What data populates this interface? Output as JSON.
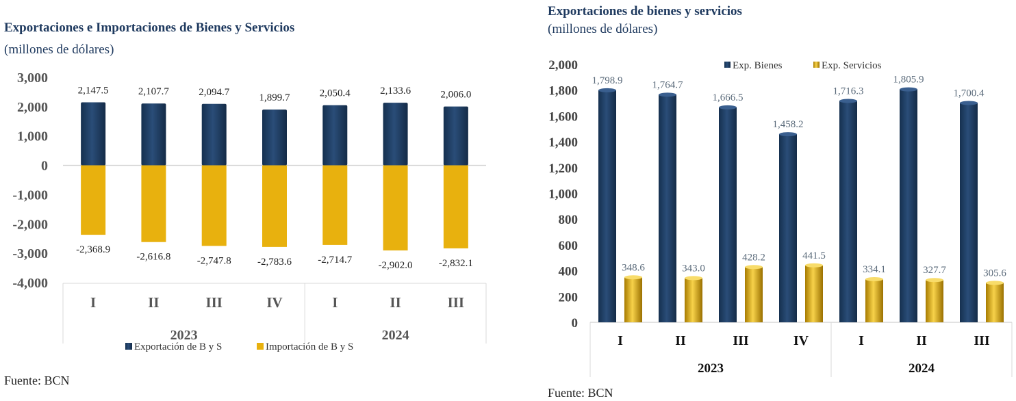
{
  "chart_data": [
    {
      "type": "bar",
      "title": "Exportaciones e Importaciones de Bienes y Servicios",
      "subtitle": "(millones de dólares)",
      "categories": [
        "I",
        "II",
        "III",
        "IV",
        "I",
        "II",
        "III"
      ],
      "year_groups": [
        {
          "label": "2023",
          "count": 4
        },
        {
          "label": "2024",
          "count": 3
        }
      ],
      "series": [
        {
          "name": "Exportación de B y S",
          "color": "#1f3d64",
          "values": [
            2147.5,
            2107.7,
            2094.7,
            1899.7,
            2050.4,
            2133.6,
            2006.0
          ],
          "labels": [
            "2,147.5",
            "2,107.7",
            "2,094.7",
            "1,899.7",
            "2,050.4",
            "2,133.6",
            "2,006.0"
          ]
        },
        {
          "name": "Importación de B y S",
          "color": "#e8b10e",
          "values": [
            -2368.9,
            -2616.8,
            -2747.8,
            -2783.6,
            -2714.7,
            -2902.0,
            -2832.1
          ],
          "labels": [
            "-2,368.9",
            "-2,616.8",
            "-2,747.8",
            "-2,783.6",
            "-2,714.7",
            "-2,902.0",
            "-2,832.1"
          ]
        }
      ],
      "ylim": [
        -4000,
        3000
      ],
      "yticks": [
        3000,
        2000,
        1000,
        0,
        -1000,
        -2000,
        -3000,
        -4000
      ],
      "ytick_labels": [
        "3,000",
        "2,000",
        "1,000",
        "0",
        "-1,000",
        "-2,000",
        "-3,000",
        "-4,000"
      ],
      "legend_position": "bottom",
      "source": "Fuente: BCN"
    },
    {
      "type": "bar",
      "title": "Exportaciones de bienes y servicios",
      "subtitle": "(millones de dólares)",
      "categories": [
        "I",
        "II",
        "III",
        "IV",
        "I",
        "II",
        "III"
      ],
      "year_groups": [
        {
          "label": "2023",
          "count": 4
        },
        {
          "label": "2024",
          "count": 3
        }
      ],
      "series": [
        {
          "name": "Exp. Bienes",
          "color": "#1f3d64",
          "values": [
            1798.9,
            1764.7,
            1666.5,
            1458.2,
            1716.3,
            1805.9,
            1700.4
          ],
          "labels": [
            "1,798.9",
            "1,764.7",
            "1,666.5",
            "1,458.2",
            "1,716.3",
            "1,805.9",
            "1,700.4"
          ]
        },
        {
          "name": "Exp. Servicios",
          "color": "#d9a90a",
          "values": [
            348.6,
            343.0,
            428.2,
            441.5,
            334.1,
            327.7,
            305.6
          ],
          "labels": [
            "348.6",
            "343.0",
            "428.2",
            "441.5",
            "334.1",
            "327.7",
            "305.6"
          ]
        }
      ],
      "ylim": [
        0,
        2000
      ],
      "yticks": [
        2000,
        1800,
        1600,
        1400,
        1200,
        1000,
        800,
        600,
        400,
        200,
        0
      ],
      "ytick_labels": [
        "2,000",
        "1,800",
        "1,600",
        "1,400",
        "1,200",
        "1,000",
        "800",
        "600",
        "400",
        "200",
        "0"
      ],
      "legend_position": "top",
      "source": "Fuente: BCN"
    }
  ]
}
